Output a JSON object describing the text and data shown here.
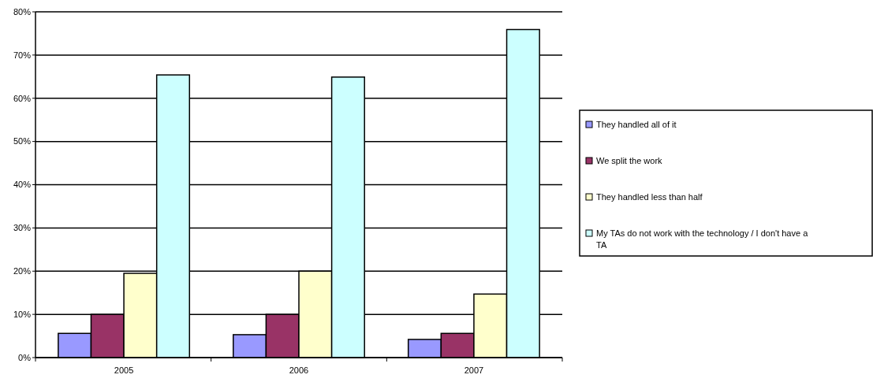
{
  "chart_data": {
    "type": "bar",
    "categories": [
      "2005",
      "2006",
      "2007"
    ],
    "series": [
      {
        "name": "They handled all of it",
        "color": "#9999ff",
        "values": [
          5.6,
          5.3,
          4.2
        ]
      },
      {
        "name": "We split the work",
        "color": "#993366",
        "values": [
          10,
          10,
          5.6
        ]
      },
      {
        "name": "They handled less than half",
        "color": "#ffffcc",
        "values": [
          19.5,
          20,
          14.7
        ]
      },
      {
        "name": "My TAs do not work with the technology / I don't have a TA",
        "color": "#ccffff",
        "values": [
          65.4,
          64.9,
          75.9
        ]
      }
    ],
    "ylim": [
      0,
      80
    ],
    "yticks": [
      {
        "value": 0,
        "label": "0%"
      },
      {
        "value": 10,
        "label": "10%"
      },
      {
        "value": 20,
        "label": "20%"
      },
      {
        "value": 30,
        "label": "30%"
      },
      {
        "value": 40,
        "label": "40%"
      },
      {
        "value": 50,
        "label": "50%"
      },
      {
        "value": 60,
        "label": "60%"
      },
      {
        "value": 70,
        "label": "70%"
      },
      {
        "value": 80,
        "label": "80%"
      }
    ],
    "grid": "y",
    "legend": "right"
  }
}
